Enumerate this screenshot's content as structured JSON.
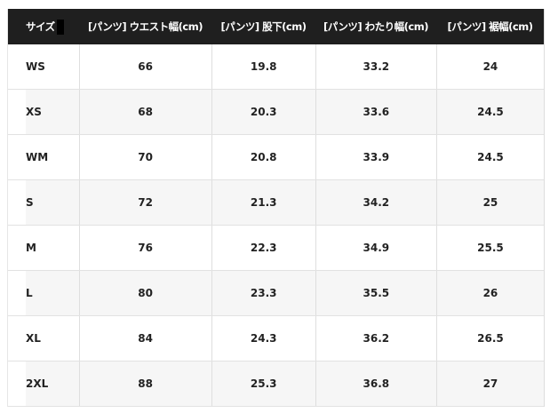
{
  "table": {
    "headers": [
      "サイズ",
      "[パンツ] ウエスト幅(cm)",
      "[パンツ] 股下(cm)",
      "[パンツ] わたり幅(cm)",
      "[パンツ] 裾幅(cm)"
    ],
    "rows": [
      [
        "WS",
        "66",
        "19.8",
        "33.2",
        "24"
      ],
      [
        "XS",
        "68",
        "20.3",
        "33.6",
        "24.5"
      ],
      [
        "WM",
        "70",
        "20.8",
        "33.9",
        "24.5"
      ],
      [
        "S",
        "72",
        "21.3",
        "34.2",
        "25"
      ],
      [
        "M",
        "76",
        "22.3",
        "34.9",
        "25.5"
      ],
      [
        "L",
        "80",
        "23.3",
        "35.5",
        "26"
      ],
      [
        "XL",
        "84",
        "24.3",
        "36.2",
        "26.5"
      ],
      [
        "2XL",
        "88",
        "25.3",
        "36.8",
        "27"
      ]
    ]
  }
}
